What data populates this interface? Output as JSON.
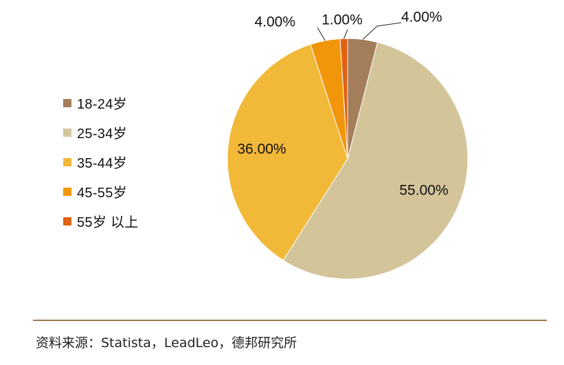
{
  "chart_data": {
    "type": "pie",
    "categories": [
      "18-24岁",
      "25-34岁",
      "35-44岁",
      "45-55岁",
      "55岁 以上"
    ],
    "values": [
      4.0,
      55.0,
      36.0,
      4.0,
      1.0
    ],
    "value_labels": [
      "4.00%",
      "55.00%",
      "36.00%",
      "4.00%",
      "1.00%"
    ],
    "colors": [
      "#a47d5b",
      "#d4c49a",
      "#f2b838",
      "#f1960a",
      "#e06212"
    ],
    "start_angle_deg": 0,
    "direction": "clockwise",
    "legend_position": "left",
    "title": ""
  },
  "source": {
    "text": "资料来源：Statista，LeadLeo，德邦研究所",
    "rule_color": "#a07850"
  }
}
